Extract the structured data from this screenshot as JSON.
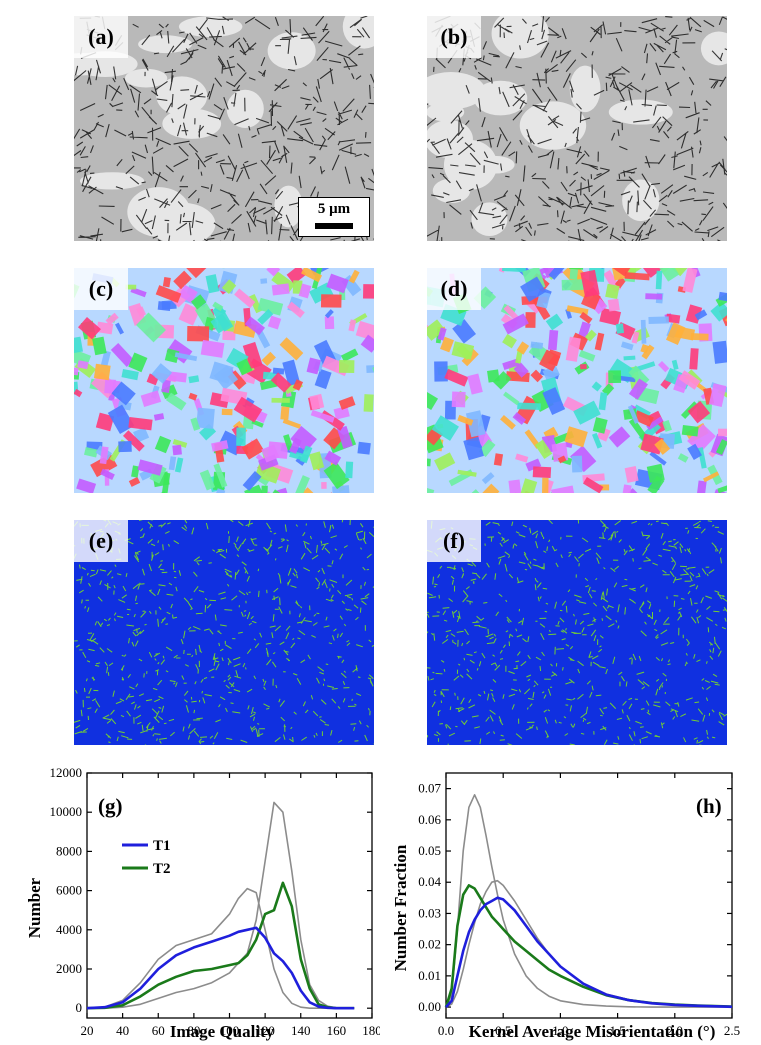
{
  "panels": [
    {
      "id": "a",
      "label": "(a)",
      "kind": "image-quality-map"
    },
    {
      "id": "b",
      "label": "(b)",
      "kind": "image-quality-map"
    },
    {
      "id": "c",
      "label": "(c)",
      "kind": "orientation-map"
    },
    {
      "id": "d",
      "label": "(d)",
      "kind": "orientation-map"
    },
    {
      "id": "e",
      "label": "(e)",
      "kind": "kernel-misorientation-map"
    },
    {
      "id": "f",
      "label": "(f)",
      "kind": "kernel-misorientation-map"
    }
  ],
  "scale_bar": {
    "label": "5 μm"
  },
  "colors": {
    "T1": "#1f1fdc",
    "T2": "#1a7a1a",
    "gray": "#8c8c8c",
    "kam_low": "#1030e0",
    "kam_high": "#7de020"
  },
  "chart_data": [
    {
      "type": "line",
      "panel_label": "(g)",
      "xlabel": "Image Quality",
      "ylabel": "Number",
      "xlim": [
        20,
        180
      ],
      "ylim": [
        -500,
        12000
      ],
      "xticks": [
        20,
        40,
        60,
        80,
        100,
        120,
        140,
        160,
        180
      ],
      "yticks": [
        0,
        2000,
        4000,
        6000,
        8000,
        10000,
        12000
      ],
      "legend": "upper-left",
      "x": [
        20,
        30,
        40,
        50,
        60,
        70,
        80,
        90,
        100,
        105,
        110,
        115,
        120,
        125,
        130,
        135,
        140,
        145,
        150,
        155,
        160,
        170
      ],
      "series": [
        {
          "name": "T1",
          "color": "#1f1fdc",
          "values": [
            0,
            50,
            300,
            1000,
            2000,
            2700,
            3100,
            3400,
            3700,
            3900,
            4000,
            4100,
            3600,
            2800,
            2400,
            1800,
            900,
            300,
            80,
            20,
            0,
            0
          ]
        },
        {
          "name": "T2",
          "color": "#1a7a1a",
          "values": [
            0,
            20,
            150,
            600,
            1200,
            1600,
            1900,
            2000,
            2200,
            2300,
            2700,
            3500,
            4800,
            5000,
            6400,
            5200,
            2500,
            1000,
            200,
            50,
            0,
            0
          ]
        },
        {
          "name": "",
          "color": "#8c8c8c",
          "values": [
            0,
            60,
            400,
            1300,
            2500,
            3200,
            3500,
            3800,
            4800,
            5600,
            6100,
            5900,
            4000,
            2000,
            800,
            250,
            50,
            0,
            0,
            0,
            0,
            0
          ]
        },
        {
          "name": "",
          "color": "#8c8c8c",
          "values": [
            0,
            0,
            50,
            200,
            500,
            800,
            1000,
            1300,
            1800,
            2300,
            2800,
            4500,
            7500,
            10500,
            10000,
            7000,
            3500,
            1200,
            400,
            100,
            20,
            0
          ]
        }
      ]
    },
    {
      "type": "line",
      "panel_label": "(h)",
      "xlabel": "Kernel Average Misorientation (°)",
      "ylabel": "Number Fraction",
      "xlim": [
        0,
        2.5
      ],
      "ylim": [
        -0.0035,
        0.075
      ],
      "xticks": [
        0.0,
        0.5,
        1.0,
        1.5,
        2.0,
        2.5
      ],
      "yticks": [
        0.0,
        0.01,
        0.02,
        0.03,
        0.04,
        0.05,
        0.06,
        0.07
      ],
      "x": [
        0,
        0.05,
        0.1,
        0.15,
        0.2,
        0.25,
        0.3,
        0.35,
        0.4,
        0.45,
        0.5,
        0.6,
        0.7,
        0.8,
        0.9,
        1.0,
        1.2,
        1.4,
        1.6,
        1.8,
        2.0,
        2.2,
        2.5
      ],
      "series": [
        {
          "name": "T1",
          "color": "#1f1fdc",
          "values": [
            0,
            0.002,
            0.01,
            0.018,
            0.024,
            0.028,
            0.031,
            0.033,
            0.034,
            0.035,
            0.0345,
            0.031,
            0.026,
            0.021,
            0.017,
            0.013,
            0.0075,
            0.004,
            0.0022,
            0.0012,
            0.0007,
            0.0004,
            0.0001
          ]
        },
        {
          "name": "T2",
          "color": "#1a7a1a",
          "values": [
            0,
            0.006,
            0.026,
            0.036,
            0.039,
            0.038,
            0.035,
            0.032,
            0.029,
            0.027,
            0.025,
            0.021,
            0.018,
            0.015,
            0.012,
            0.01,
            0.0065,
            0.0038,
            0.0022,
            0.0013,
            0.0008,
            0.0005,
            0.0002
          ]
        },
        {
          "name": "",
          "color": "#8c8c8c",
          "values": [
            0,
            0.004,
            0.025,
            0.05,
            0.064,
            0.068,
            0.064,
            0.055,
            0.045,
            0.036,
            0.028,
            0.017,
            0.01,
            0.006,
            0.0035,
            0.002,
            0.0008,
            0.0003,
            0.0001,
            0,
            0,
            0,
            0
          ]
        },
        {
          "name": "",
          "color": "#8c8c8c",
          "values": [
            0,
            0.001,
            0.005,
            0.012,
            0.02,
            0.027,
            0.033,
            0.037,
            0.04,
            0.0405,
            0.039,
            0.034,
            0.028,
            0.022,
            0.017,
            0.013,
            0.0075,
            0.0042,
            0.0024,
            0.0013,
            0.0007,
            0.0004,
            0.0001
          ]
        }
      ]
    }
  ]
}
